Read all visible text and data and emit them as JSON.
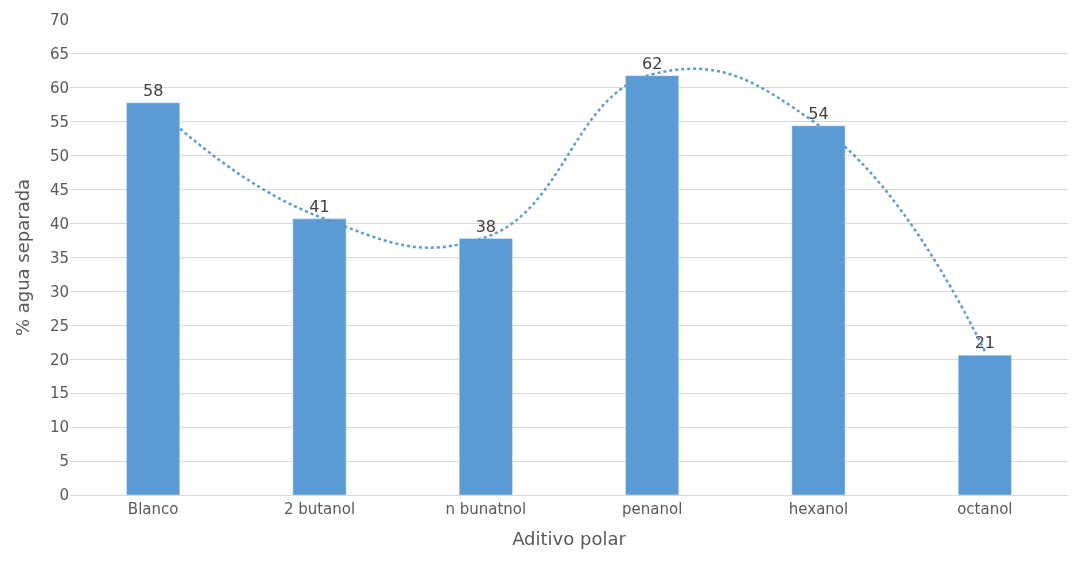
{
  "chart_data": {
    "type": "bar",
    "xlabel": "Aditivo polar",
    "ylabel": "% agua separada",
    "categories": [
      "Blanco",
      "2 butanol",
      "n bunatnol",
      "penanol",
      "hexanol",
      "octanol"
    ],
    "series": [
      {
        "color": "#5b9bd5",
        "values": [
          57.8,
          40.7,
          37.8,
          61.8,
          54.4,
          20.6
        ],
        "value_labels": [
          "58",
          "41",
          "38",
          "62",
          "54",
          "21"
        ]
      },
      {
        "type": "line",
        "color": "#5b9bd5",
        "line_style": "dotted",
        "values": [
          57.5,
          41,
          38,
          62,
          54.5,
          21.2
        ]
      }
    ],
    "ylim": [
      0,
      70
    ],
    "yticks": [
      0,
      5,
      10,
      15,
      20,
      25,
      30,
      35,
      40,
      45,
      50,
      55,
      60,
      65,
      70
    ],
    "grid": "y"
  }
}
